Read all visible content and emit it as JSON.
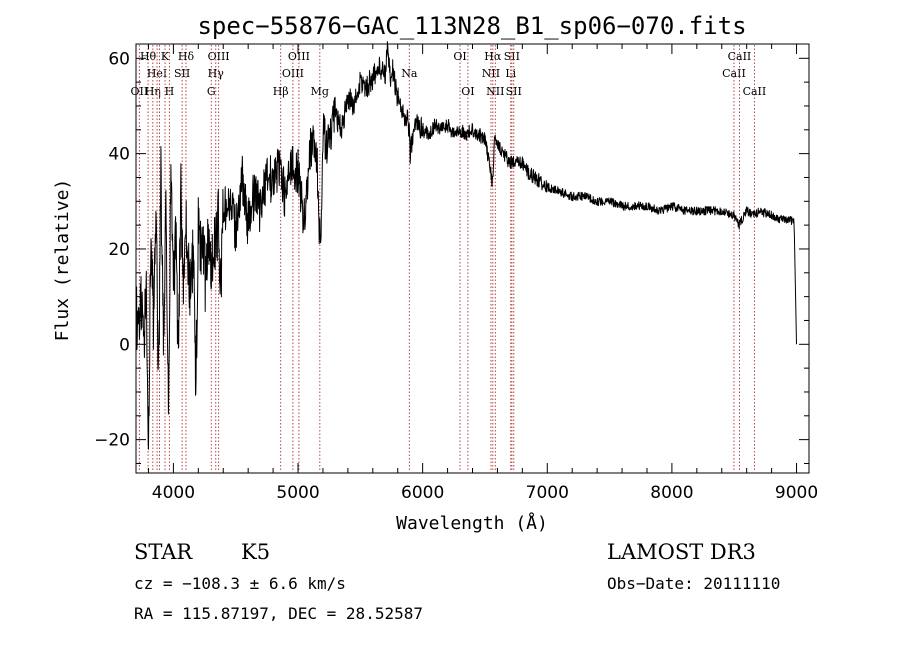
{
  "chart_data": {
    "type": "line",
    "title": "spec−55876−GAC_113N28_B1_sp06−070.fits",
    "xlabel": "Wavelength (Å)",
    "ylabel": "Flux (relative)",
    "xlim": [
      3700,
      9100
    ],
    "ylim": [
      -27,
      63
    ],
    "x_ticks": [
      {
        "value": 4000,
        "label": "4000"
      },
      {
        "value": 5000,
        "label": "5000"
      },
      {
        "value": 6000,
        "label": "6000"
      },
      {
        "value": 7000,
        "label": "7000"
      },
      {
        "value": 8000,
        "label": "8000"
      },
      {
        "value": 9000,
        "label": "9000"
      }
    ],
    "y_ticks": [
      {
        "value": -20,
        "label": "−20"
      },
      {
        "value": 0,
        "label": "0"
      },
      {
        "value": 20,
        "label": "20"
      },
      {
        "value": 40,
        "label": "40"
      },
      {
        "value": 60,
        "label": "60"
      }
    ],
    "series": [
      {
        "name": "flux",
        "x": [
          3700,
          3720,
          3740,
          3760,
          3780,
          3800,
          3820,
          3840,
          3860,
          3880,
          3900,
          3920,
          3940,
          3960,
          3980,
          4000,
          4020,
          4040,
          4060,
          4080,
          4100,
          4120,
          4140,
          4160,
          4180,
          4200,
          4220,
          4240,
          4260,
          4280,
          4300,
          4320,
          4340,
          4360,
          4380,
          4400,
          4450,
          4500,
          4550,
          4600,
          4650,
          4700,
          4750,
          4800,
          4850,
          4900,
          4950,
          5000,
          5050,
          5100,
          5150,
          5180,
          5200,
          5250,
          5300,
          5350,
          5400,
          5450,
          5500,
          5550,
          5600,
          5650,
          5700,
          5720,
          5740,
          5760,
          5780,
          5800,
          5850,
          5890,
          5900,
          5950,
          6000,
          6050,
          6100,
          6150,
          6200,
          6250,
          6300,
          6350,
          6400,
          6450,
          6500,
          6560,
          6580,
          6600,
          6650,
          6700,
          6750,
          6800,
          6850,
          6900,
          6950,
          7000,
          7100,
          7200,
          7300,
          7400,
          7500,
          7600,
          7700,
          7800,
          7900,
          8000,
          8100,
          8200,
          8300,
          8400,
          8500,
          8540,
          8600,
          8660,
          8700,
          8800,
          8900,
          8980,
          9000
        ],
        "y": [
          8,
          2,
          10,
          -2,
          14,
          -20,
          25,
          5,
          30,
          -10,
          35,
          0,
          28,
          -16,
          38,
          12,
          22,
          -4,
          34,
          8,
          25,
          16,
          10,
          20,
          -10,
          26,
          18,
          22,
          10,
          25,
          15,
          22,
          20,
          26,
          12,
          28,
          30,
          24,
          35,
          25,
          32,
          28,
          36,
          34,
          38,
          30,
          38,
          36,
          26,
          42,
          40,
          18,
          44,
          42,
          48,
          45,
          52,
          50,
          55,
          54,
          56,
          58,
          57,
          62,
          55,
          58,
          54,
          52,
          48,
          46,
          40,
          47,
          45,
          44,
          46,
          45,
          46,
          44,
          45,
          44,
          45,
          44,
          43,
          34,
          44,
          42,
          40,
          38,
          38,
          38,
          36,
          35,
          34,
          33,
          32,
          31,
          31,
          30,
          30,
          29,
          29,
          29,
          28,
          29,
          28,
          28,
          28,
          28,
          27,
          25,
          28,
          27,
          28,
          27,
          26,
          26,
          0
        ]
      }
    ],
    "lines": [
      {
        "x": 3727,
        "label": "OII",
        "row": 3
      },
      {
        "x": 3797,
        "label": "Hθ",
        "row": 1
      },
      {
        "x": 3835,
        "label": "Hη",
        "row": 3
      },
      {
        "x": 3869,
        "label": "HeI",
        "row": 2
      },
      {
        "x": 3889,
        "label": "",
        "row": 0
      },
      {
        "x": 3933,
        "label": "K",
        "row": 1
      },
      {
        "x": 3968,
        "label": "H",
        "row": 3
      },
      {
        "x": 4070,
        "label": "SII",
        "row": 2
      },
      {
        "x": 4101,
        "label": "Hδ",
        "row": 1
      },
      {
        "x": 4304,
        "label": "G",
        "row": 3
      },
      {
        "x": 4340,
        "label": "Hγ",
        "row": 2
      },
      {
        "x": 4363,
        "label": "OIII",
        "row": 1
      },
      {
        "x": 4861,
        "label": "Hβ",
        "row": 3
      },
      {
        "x": 4959,
        "label": "OIII",
        "row": 2
      },
      {
        "x": 5007,
        "label": "OIII",
        "row": 1
      },
      {
        "x": 5175,
        "label": "Mg",
        "row": 3
      },
      {
        "x": 5893,
        "label": "Na",
        "row": 2
      },
      {
        "x": 6300,
        "label": "OI",
        "row": 1
      },
      {
        "x": 6363,
        "label": "OI",
        "row": 3
      },
      {
        "x": 6548,
        "label": "NII",
        "row": 2
      },
      {
        "x": 6563,
        "label": "Hα",
        "row": 1
      },
      {
        "x": 6583,
        "label": "NII",
        "row": 3
      },
      {
        "x": 6707,
        "label": "Li",
        "row": 2
      },
      {
        "x": 6716,
        "label": "SII",
        "row": 1
      },
      {
        "x": 6731,
        "label": "SII",
        "row": 3
      },
      {
        "x": 8498,
        "label": "CaII",
        "row": 2
      },
      {
        "x": 8542,
        "label": "CaII",
        "row": 1
      },
      {
        "x": 8662,
        "label": "CaII",
        "row": 3
      }
    ]
  },
  "info": {
    "class": "STAR",
    "subclass": "K5",
    "survey": "LAMOST DR3",
    "cz": "cz = −108.3 ± 6.6 km/s",
    "obs_date": "Obs−Date: 20111110",
    "radec": "RA = 115.87197, DEC =  28.52587"
  }
}
